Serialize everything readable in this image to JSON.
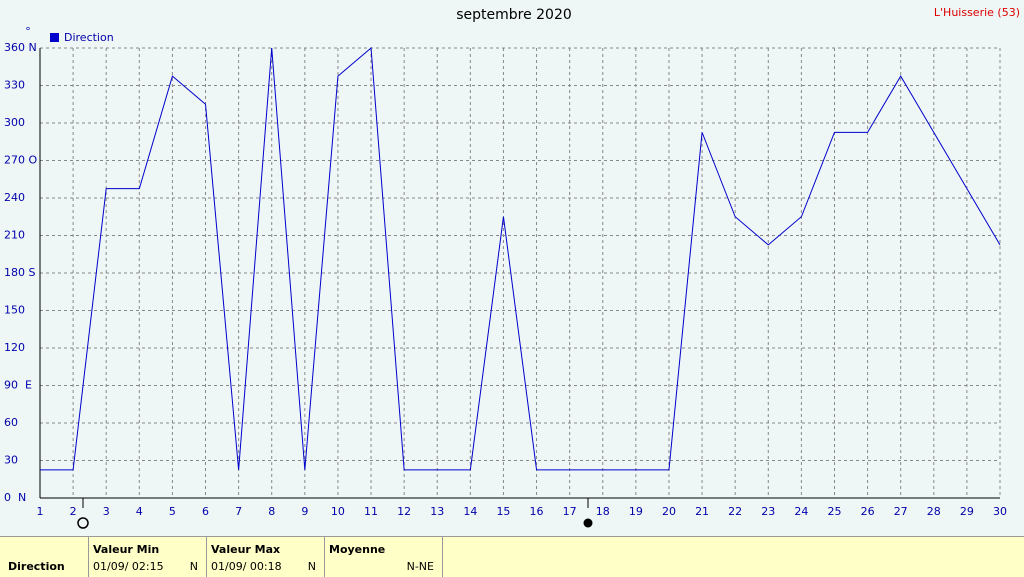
{
  "chart_data": {
    "type": "line",
    "title": "septembre 2020",
    "station": "L'Huisserie (53)",
    "y_unit": "°",
    "x": [
      1,
      2,
      3,
      4,
      5,
      6,
      7,
      8,
      9,
      10,
      11,
      12,
      13,
      14,
      15,
      16,
      17,
      18,
      19,
      20,
      21,
      22,
      23,
      24,
      25,
      26,
      27,
      28,
      29,
      30
    ],
    "series": [
      {
        "name": "Direction",
        "color": "#0000cc",
        "values": [
          22.5,
          22.5,
          247.5,
          247.5,
          337.5,
          315,
          22.5,
          360,
          22.5,
          337.5,
          360,
          22.5,
          22.5,
          22.5,
          225,
          22.5,
          22.5,
          22.5,
          22.5,
          22.5,
          292.5,
          225,
          202.5,
          225,
          292.5,
          292.5,
          337.5,
          292.5,
          247.5,
          202.5
        ]
      }
    ],
    "xlim": [
      1,
      30
    ],
    "xticks": [
      1,
      2,
      3,
      4,
      5,
      6,
      7,
      8,
      9,
      10,
      11,
      12,
      13,
      14,
      15,
      16,
      17,
      18,
      19,
      20,
      21,
      22,
      23,
      24,
      25,
      26,
      27,
      28,
      29,
      30
    ],
    "ylim": [
      0,
      360
    ],
    "yticks": [
      {
        "value": 0,
        "label": "0  N"
      },
      30,
      60,
      {
        "value": 90,
        "label": "90  E"
      },
      120,
      150,
      {
        "value": 180,
        "label": "180 S"
      },
      210,
      240,
      {
        "value": 270,
        "label": "270 O"
      },
      300,
      330,
      {
        "value": 360,
        "label": "360 N"
      }
    ],
    "grid": true,
    "legend": "top-left"
  },
  "summary": {
    "row_label": "Direction",
    "columns": [
      {
        "header": "Valeur Min",
        "date": "01/09/ 02:15",
        "value": "N"
      },
      {
        "header": "Valeur Max",
        "date": "01/09/ 00:18",
        "value": "N"
      },
      {
        "header": "Moyenne",
        "value": "N-NE"
      }
    ]
  }
}
